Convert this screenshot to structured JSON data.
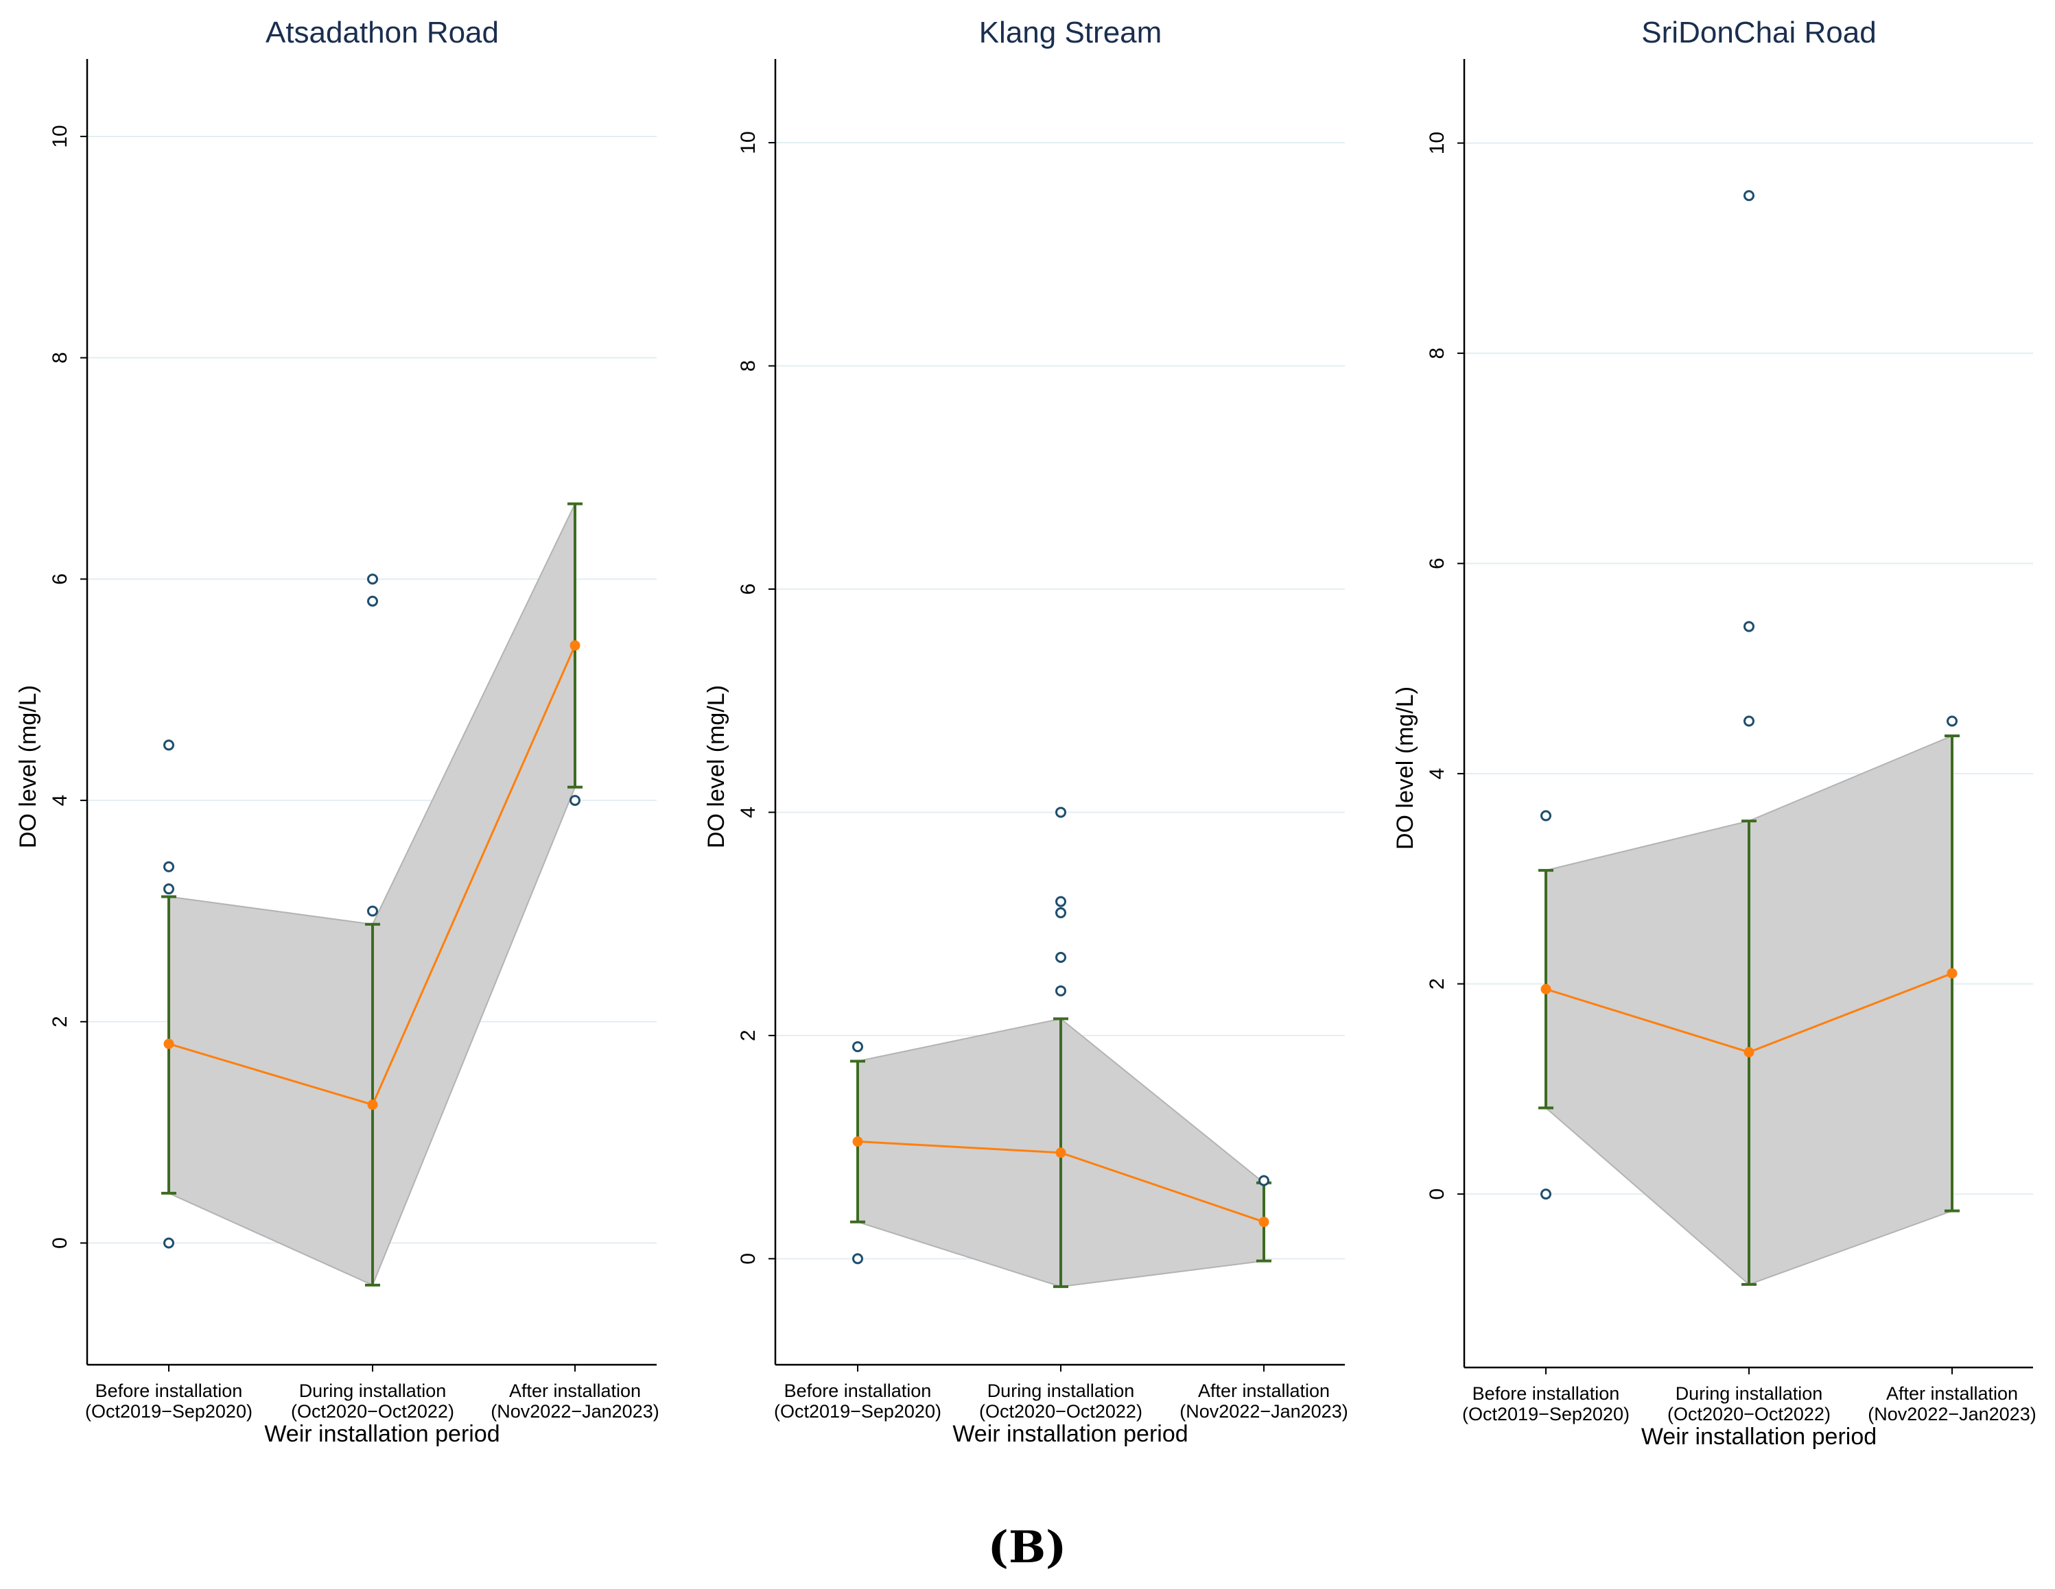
{
  "figure_label": "(B)",
  "colors": {
    "band": "#d0d0d0",
    "band_edge": "#b3b3b3",
    "mean_line": "#ff7f0e",
    "error_bar": "#3d6b21",
    "outlier": "#1f4e6e",
    "grid": "#e3eef2",
    "title": "#1a2e4f"
  },
  "chart_data": [
    {
      "type": "line",
      "title": "Atsadathon Road",
      "xlabel": "Weir installation period",
      "ylabel": "DO level (mg/L)",
      "ylim": [
        -1.1,
        10.7
      ],
      "yticks": [
        0,
        2,
        4,
        6,
        8,
        10
      ],
      "categories": [
        {
          "line1": "Before installation",
          "line2": "(Oct2019−Sep2020)"
        },
        {
          "line1": "During installation",
          "line2": "(Oct2020−Oct2022)"
        },
        {
          "line1": "After installation",
          "line2": "(Nov2022−Jan2023)"
        }
      ],
      "mean": [
        1.8,
        1.25,
        5.4
      ],
      "ci_lower": [
        0.45,
        -0.38,
        4.12
      ],
      "ci_upper": [
        3.13,
        2.88,
        6.68
      ],
      "outliers": [
        [
          0,
          4.5
        ],
        [
          0,
          3.4
        ],
        [
          0,
          3.2
        ],
        [
          0,
          0.0
        ],
        [
          1,
          6.0
        ],
        [
          1,
          5.8
        ],
        [
          1,
          3.0
        ],
        [
          2,
          4.0
        ]
      ]
    },
    {
      "type": "line",
      "title": "Klang Stream",
      "xlabel": "Weir installation period",
      "ylabel": "DO level (mg/L)",
      "ylim": [
        -0.95,
        10.75
      ],
      "yticks": [
        0,
        2,
        4,
        6,
        8,
        10
      ],
      "categories": [
        {
          "line1": "Before installation",
          "line2": "(Oct2019−Sep2020)"
        },
        {
          "line1": "During installation",
          "line2": "(Oct2020−Oct2022)"
        },
        {
          "line1": "After installation",
          "line2": "(Nov2022−Jan2023)"
        }
      ],
      "mean": [
        1.05,
        0.95,
        0.33
      ],
      "ci_lower": [
        0.33,
        -0.25,
        -0.02
      ],
      "ci_upper": [
        1.77,
        2.15,
        0.68
      ],
      "outliers": [
        [
          0,
          1.9
        ],
        [
          0,
          0.0
        ],
        [
          1,
          4.0
        ],
        [
          1,
          3.2
        ],
        [
          1,
          3.1
        ],
        [
          1,
          2.7
        ],
        [
          1,
          2.4
        ],
        [
          2,
          0.7
        ]
      ]
    },
    {
      "type": "line",
      "title": "SriDonChai Road",
      "xlabel": "Weir installation period",
      "ylabel": "DO level (mg/L)",
      "ylim": [
        -1.65,
        10.8
      ],
      "yticks": [
        0,
        2,
        4,
        6,
        8,
        10
      ],
      "categories": [
        {
          "line1": "Before installation",
          "line2": "(Oct2019−Sep2020)"
        },
        {
          "line1": "During installation",
          "line2": "(Oct2020−Oct2022)"
        },
        {
          "line1": "After installation",
          "line2": "(Nov2022−Jan2023)"
        }
      ],
      "mean": [
        1.95,
        1.35,
        2.1
      ],
      "ci_lower": [
        0.82,
        -0.86,
        -0.16
      ],
      "ci_upper": [
        3.08,
        3.55,
        4.36
      ],
      "outliers": [
        [
          0,
          3.6
        ],
        [
          0,
          0.0
        ],
        [
          1,
          9.5
        ],
        [
          1,
          5.4
        ],
        [
          1,
          4.5
        ],
        [
          2,
          4.5
        ]
      ]
    }
  ]
}
